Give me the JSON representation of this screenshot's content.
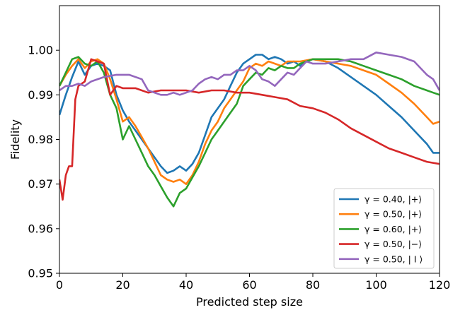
{
  "chart_data": {
    "type": "line",
    "title": "",
    "xlabel": "Predicted step size",
    "ylabel": "Fidelity",
    "xlim": [
      0,
      120
    ],
    "ylim": [
      0.95,
      1.01
    ],
    "xticks": [
      0,
      20,
      40,
      60,
      80,
      100,
      120
    ],
    "yticks": [
      0.95,
      0.96,
      0.97,
      0.98,
      0.99,
      1.0
    ],
    "xtick_labels": [
      "0",
      "20",
      "40",
      "60",
      "80",
      "100",
      "120"
    ],
    "ytick_labels": [
      "0.95",
      "0.96",
      "0.97",
      "0.98",
      "0.99",
      "1.00"
    ],
    "grid": false,
    "legend_position": "lower right",
    "series": [
      {
        "name": "γ = 0.40, |+⟩",
        "color": "#1f77b4",
        "points": [
          [
            0,
            0.9855
          ],
          [
            2,
            0.99
          ],
          [
            4,
            0.994
          ],
          [
            6,
            0.9975
          ],
          [
            8,
            0.9945
          ],
          [
            10,
            0.9965
          ],
          [
            12,
            0.997
          ],
          [
            14,
            0.9965
          ],
          [
            16,
            0.9955
          ],
          [
            18,
            0.99
          ],
          [
            20,
            0.9865
          ],
          [
            22,
            0.984
          ],
          [
            24,
            0.982
          ],
          [
            26,
            0.98
          ],
          [
            28,
            0.978
          ],
          [
            30,
            0.976
          ],
          [
            32,
            0.974
          ],
          [
            34,
            0.9725
          ],
          [
            36,
            0.973
          ],
          [
            38,
            0.974
          ],
          [
            40,
            0.973
          ],
          [
            42,
            0.9745
          ],
          [
            44,
            0.977
          ],
          [
            46,
            0.981
          ],
          [
            48,
            0.985
          ],
          [
            50,
            0.987
          ],
          [
            52,
            0.989
          ],
          [
            54,
            0.992
          ],
          [
            56,
            0.995
          ],
          [
            58,
            0.997
          ],
          [
            60,
            0.998
          ],
          [
            62,
            0.999
          ],
          [
            64,
            0.999
          ],
          [
            66,
            0.998
          ],
          [
            68,
            0.9985
          ],
          [
            70,
            0.998
          ],
          [
            72,
            0.997
          ],
          [
            74,
            0.9975
          ],
          [
            76,
            0.9965
          ],
          [
            78,
            0.9975
          ],
          [
            80,
            0.998
          ],
          [
            84,
            0.9975
          ],
          [
            88,
            0.996
          ],
          [
            92,
            0.994
          ],
          [
            96,
            0.992
          ],
          [
            100,
            0.99
          ],
          [
            104,
            0.9875
          ],
          [
            108,
            0.985
          ],
          [
            112,
            0.982
          ],
          [
            116,
            0.979
          ],
          [
            118,
            0.977
          ],
          [
            120,
            0.977
          ]
        ]
      },
      {
        "name": "γ = 0.50, |+⟩",
        "color": "#ff7f0e",
        "points": [
          [
            0,
            0.992
          ],
          [
            2,
            0.9945
          ],
          [
            4,
            0.9965
          ],
          [
            6,
            0.998
          ],
          [
            8,
            0.996
          ],
          [
            10,
            0.9975
          ],
          [
            12,
            0.998
          ],
          [
            14,
            0.997
          ],
          [
            16,
            0.9935
          ],
          [
            18,
            0.989
          ],
          [
            20,
            0.984
          ],
          [
            22,
            0.985
          ],
          [
            24,
            0.983
          ],
          [
            26,
            0.9805
          ],
          [
            28,
            0.978
          ],
          [
            30,
            0.975
          ],
          [
            32,
            0.972
          ],
          [
            34,
            0.971
          ],
          [
            36,
            0.9705
          ],
          [
            38,
            0.971
          ],
          [
            40,
            0.97
          ],
          [
            42,
            0.972
          ],
          [
            44,
            0.975
          ],
          [
            46,
            0.979
          ],
          [
            48,
            0.982
          ],
          [
            50,
            0.984
          ],
          [
            52,
            0.987
          ],
          [
            54,
            0.989
          ],
          [
            56,
            0.991
          ],
          [
            58,
            0.993
          ],
          [
            60,
            0.996
          ],
          [
            62,
            0.997
          ],
          [
            64,
            0.9965
          ],
          [
            66,
            0.9975
          ],
          [
            68,
            0.997
          ],
          [
            70,
            0.9965
          ],
          [
            72,
            0.9975
          ],
          [
            76,
            0.9975
          ],
          [
            80,
            0.998
          ],
          [
            84,
            0.9975
          ],
          [
            88,
            0.997
          ],
          [
            92,
            0.9965
          ],
          [
            96,
            0.9955
          ],
          [
            100,
            0.9945
          ],
          [
            104,
            0.9925
          ],
          [
            108,
            0.9905
          ],
          [
            112,
            0.988
          ],
          [
            116,
            0.985
          ],
          [
            118,
            0.9835
          ],
          [
            120,
            0.984
          ]
        ]
      },
      {
        "name": "γ = 0.60, |+⟩",
        "color": "#2ca02c",
        "points": [
          [
            0,
            0.992
          ],
          [
            2,
            0.995
          ],
          [
            4,
            0.998
          ],
          [
            6,
            0.9985
          ],
          [
            8,
            0.997
          ],
          [
            10,
            0.9965
          ],
          [
            12,
            0.9975
          ],
          [
            14,
            0.995
          ],
          [
            16,
            0.99
          ],
          [
            18,
            0.987
          ],
          [
            20,
            0.98
          ],
          [
            22,
            0.983
          ],
          [
            24,
            0.98
          ],
          [
            26,
            0.977
          ],
          [
            28,
            0.974
          ],
          [
            30,
            0.972
          ],
          [
            32,
            0.9695
          ],
          [
            34,
            0.967
          ],
          [
            36,
            0.965
          ],
          [
            38,
            0.968
          ],
          [
            40,
            0.969
          ],
          [
            42,
            0.9715
          ],
          [
            44,
            0.974
          ],
          [
            46,
            0.977
          ],
          [
            48,
            0.98
          ],
          [
            50,
            0.982
          ],
          [
            52,
            0.984
          ],
          [
            54,
            0.986
          ],
          [
            56,
            0.988
          ],
          [
            58,
            0.992
          ],
          [
            60,
            0.9935
          ],
          [
            62,
            0.995
          ],
          [
            64,
            0.9945
          ],
          [
            66,
            0.996
          ],
          [
            68,
            0.9955
          ],
          [
            70,
            0.9965
          ],
          [
            72,
            0.996
          ],
          [
            74,
            0.996
          ],
          [
            76,
            0.997
          ],
          [
            80,
            0.998
          ],
          [
            84,
            0.998
          ],
          [
            88,
            0.998
          ],
          [
            92,
            0.9975
          ],
          [
            96,
            0.9965
          ],
          [
            100,
            0.9955
          ],
          [
            104,
            0.9945
          ],
          [
            108,
            0.9935
          ],
          [
            112,
            0.992
          ],
          [
            116,
            0.991
          ],
          [
            118,
            0.9905
          ],
          [
            120,
            0.99
          ]
        ]
      },
      {
        "name": "γ = 0.50, |−⟩",
        "color": "#d62728",
        "points": [
          [
            0,
            0.971
          ],
          [
            1,
            0.9665
          ],
          [
            2,
            0.972
          ],
          [
            3,
            0.974
          ],
          [
            4,
            0.974
          ],
          [
            5,
            0.989
          ],
          [
            6,
            0.992
          ],
          [
            8,
            0.993
          ],
          [
            10,
            0.998
          ],
          [
            12,
            0.9975
          ],
          [
            14,
            0.997
          ],
          [
            16,
            0.99
          ],
          [
            18,
            0.992
          ],
          [
            20,
            0.9915
          ],
          [
            24,
            0.9915
          ],
          [
            28,
            0.9905
          ],
          [
            32,
            0.991
          ],
          [
            36,
            0.991
          ],
          [
            40,
            0.991
          ],
          [
            44,
            0.9905
          ],
          [
            48,
            0.991
          ],
          [
            52,
            0.991
          ],
          [
            56,
            0.9905
          ],
          [
            60,
            0.9905
          ],
          [
            64,
            0.99
          ],
          [
            68,
            0.9895
          ],
          [
            72,
            0.989
          ],
          [
            76,
            0.9875
          ],
          [
            80,
            0.987
          ],
          [
            84,
            0.986
          ],
          [
            88,
            0.9845
          ],
          [
            92,
            0.9825
          ],
          [
            96,
            0.981
          ],
          [
            100,
            0.9795
          ],
          [
            104,
            0.978
          ],
          [
            108,
            0.977
          ],
          [
            112,
            0.976
          ],
          [
            116,
            0.975
          ],
          [
            120,
            0.9745
          ]
        ]
      },
      {
        "name": "γ = 0.50, | I ⟩",
        "color": "#9467bd",
        "points": [
          [
            0,
            0.991
          ],
          [
            2,
            0.992
          ],
          [
            4,
            0.992
          ],
          [
            6,
            0.9925
          ],
          [
            8,
            0.992
          ],
          [
            10,
            0.993
          ],
          [
            14,
            0.994
          ],
          [
            18,
            0.9945
          ],
          [
            22,
            0.9945
          ],
          [
            26,
            0.9935
          ],
          [
            28,
            0.991
          ],
          [
            30,
            0.9905
          ],
          [
            32,
            0.99
          ],
          [
            34,
            0.99
          ],
          [
            36,
            0.9905
          ],
          [
            38,
            0.99
          ],
          [
            40,
            0.9905
          ],
          [
            42,
            0.991
          ],
          [
            44,
            0.9925
          ],
          [
            46,
            0.9935
          ],
          [
            48,
            0.994
          ],
          [
            50,
            0.9935
          ],
          [
            52,
            0.9945
          ],
          [
            54,
            0.9945
          ],
          [
            56,
            0.9955
          ],
          [
            58,
            0.9955
          ],
          [
            60,
            0.9965
          ],
          [
            62,
            0.9955
          ],
          [
            64,
            0.9935
          ],
          [
            66,
            0.993
          ],
          [
            68,
            0.992
          ],
          [
            70,
            0.9935
          ],
          [
            72,
            0.995
          ],
          [
            74,
            0.9945
          ],
          [
            76,
            0.996
          ],
          [
            78,
            0.9975
          ],
          [
            80,
            0.997
          ],
          [
            84,
            0.997
          ],
          [
            88,
            0.9975
          ],
          [
            92,
            0.998
          ],
          [
            96,
            0.998
          ],
          [
            100,
            0.9995
          ],
          [
            104,
            0.999
          ],
          [
            108,
            0.9985
          ],
          [
            112,
            0.9975
          ],
          [
            114,
            0.996
          ],
          [
            116,
            0.9945
          ],
          [
            118,
            0.9935
          ],
          [
            120,
            0.991
          ]
        ]
      }
    ]
  }
}
